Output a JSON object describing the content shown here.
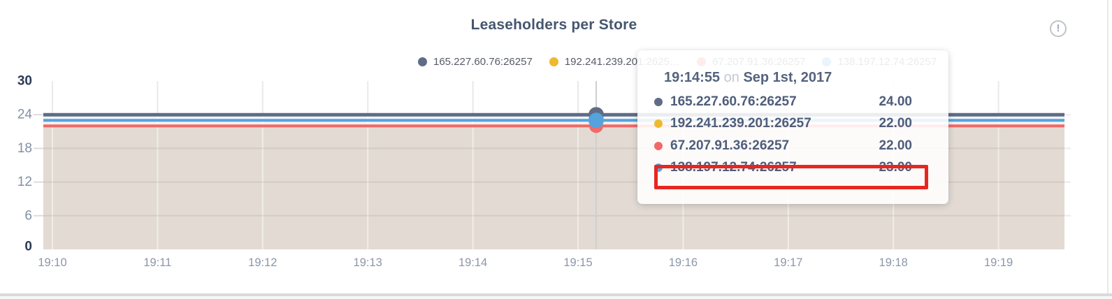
{
  "title": "Leaseholders per Store",
  "icons": {
    "info_glyph": "!"
  },
  "colors": {
    "series": [
      "#5f6c87",
      "#eeb82f",
      "#f16969",
      "#54a3dc"
    ],
    "highlight_border": "#e8261f",
    "axis_max_min": "#2b3a57",
    "axis_tick": "#8290a5",
    "x_tick": "#8c96a8"
  },
  "legend": {
    "items": [
      {
        "label": "165.227.60.76:26257",
        "color": "#5f6c87"
      },
      {
        "label": "192.241.239.201:2625…",
        "color": "#eeb82f"
      },
      {
        "label": "67.207.91.36:26257",
        "color": "#f16969"
      },
      {
        "label": "138.197.12.74:26257",
        "color": "#54a3dc"
      }
    ]
  },
  "tooltip": {
    "time": "19:14:55",
    "conjunction": "on",
    "date": "Sep 1st, 2017",
    "rows": [
      {
        "name": "165.227.60.76:26257",
        "value": "24.00",
        "color": "#5f6c87",
        "highlighted": false
      },
      {
        "name": "192.241.239.201:26257",
        "value": "22.00",
        "color": "#eeb82f",
        "highlighted": false
      },
      {
        "name": "67.207.91.36:26257",
        "value": "22.00",
        "color": "#f16969",
        "highlighted": false
      },
      {
        "name": "138.197.12.74:26257",
        "value": "23.00",
        "color": "#54a3dc",
        "highlighted": true
      }
    ]
  },
  "chart_data": {
    "type": "area",
    "title": "Leaseholders per Store",
    "x": [
      "19:10",
      "19:11",
      "19:12",
      "19:13",
      "19:14",
      "19:15",
      "19:16",
      "19:17",
      "19:18",
      "19:19"
    ],
    "ylim": [
      0,
      30
    ],
    "y_ticks": [
      0,
      6,
      12,
      18,
      24,
      30
    ],
    "grid": true,
    "legend_position": "top",
    "series": [
      {
        "name": "165.227.60.76:26257",
        "color": "#5f6c87",
        "values": [
          24,
          24,
          24,
          24,
          24,
          24,
          24,
          24,
          24,
          24
        ]
      },
      {
        "name": "192.241.239.201:26257",
        "color": "#eeb82f",
        "values": [
          22,
          22,
          22,
          22,
          22,
          22,
          22,
          22,
          22,
          22
        ]
      },
      {
        "name": "67.207.91.36:26257",
        "color": "#f16969",
        "values": [
          22,
          22,
          22,
          22,
          22,
          22,
          22,
          22,
          22,
          22
        ]
      },
      {
        "name": "138.197.12.74:26257",
        "color": "#54a3dc",
        "values": [
          23,
          23,
          23,
          23,
          23,
          23,
          23,
          23,
          23,
          23
        ]
      }
    ],
    "hover_point": {
      "time": "19:14:55",
      "date": "Sep 1st, 2017",
      "values": [
        24,
        22,
        22,
        23
      ]
    }
  }
}
